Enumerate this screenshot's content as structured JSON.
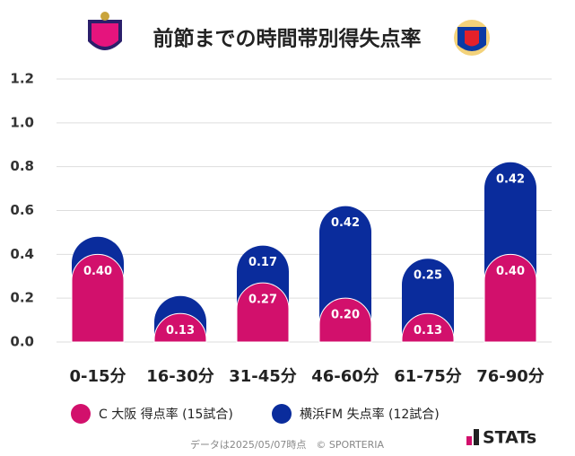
{
  "chart_data": {
    "type": "stacked-bar",
    "title": "前節までの時間帯別得失点率",
    "categories": [
      "0-15分",
      "16-30分",
      "31-45分",
      "46-60分",
      "61-75分",
      "76-90分"
    ],
    "series": [
      {
        "name": "C 大阪 得点率 (15試合)",
        "color": "#d2106c",
        "values": [
          0.4,
          0.13,
          0.27,
          0.2,
          0.13,
          0.4
        ],
        "value_labels": [
          "0.40",
          "0.13",
          "0.27",
          "0.20",
          "0.13",
          "0.40"
        ]
      },
      {
        "name": "横浜FM 失点率 (12試合)",
        "color": "#0a2c9c",
        "values": [
          0.08,
          0.08,
          0.17,
          0.42,
          0.25,
          0.42
        ],
        "value_labels": [
          null,
          null,
          "0.17",
          "0.42",
          "0.25",
          "0.42"
        ]
      }
    ],
    "ylim": [
      0,
      1.2
    ],
    "yticks": [
      {
        "value": 0,
        "label": "0.0"
      },
      {
        "value": 0.2,
        "label": "0.2"
      },
      {
        "value": 0.4,
        "label": "0.4"
      },
      {
        "value": 0.6,
        "label": "0.6"
      },
      {
        "value": 0.8,
        "label": "0.8"
      },
      {
        "value": 1,
        "label": "1.0"
      },
      {
        "value": 1.2,
        "label": "1.2"
      }
    ],
    "grid": true,
    "footnote": "データは2025/05/07時点　© SPORTERIA",
    "brand": "STATs"
  }
}
